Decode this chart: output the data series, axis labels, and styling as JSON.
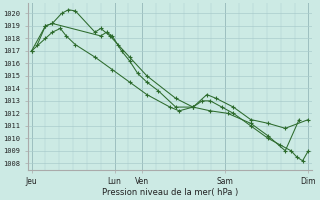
{
  "title": "Pression niveau de la mer( hPa )",
  "ylabel_values": [
    1008,
    1009,
    1010,
    1011,
    1012,
    1013,
    1014,
    1015,
    1016,
    1017,
    1018,
    1019,
    1020
  ],
  "ylim": [
    1007.5,
    1020.8
  ],
  "background_color": "#cceae4",
  "grid_color": "#aacccc",
  "line_color": "#2d6b2d",
  "xlim": [
    -0.3,
    24.3
  ],
  "xtick_positions": [
    0,
    7.2,
    9.6,
    16.8,
    24
  ],
  "xtick_labels": [
    "Jeu",
    "Lun",
    "Ven",
    "Sam",
    "Dim"
  ],
  "series1_x": [
    0,
    1.2,
    1.8,
    2.6,
    3.2,
    3.8,
    5.5,
    6.0,
    6.8,
    7.5,
    8.5,
    10.0,
    12.5,
    14.0,
    15.5,
    17.0,
    19.0,
    20.5,
    22.0,
    23.2
  ],
  "series1_y": [
    1017.0,
    1019.0,
    1019.2,
    1020.0,
    1020.3,
    1020.2,
    1018.5,
    1018.8,
    1018.2,
    1017.5,
    1016.5,
    1015.0,
    1013.2,
    1012.5,
    1012.2,
    1012.0,
    1011.2,
    1010.2,
    1009.0,
    1011.5
  ],
  "series2_x": [
    0.5,
    1.2,
    1.8,
    6.0,
    6.5,
    7.0,
    7.8,
    8.5,
    9.2,
    10.0,
    11.0,
    12.5,
    14.0,
    15.2,
    16.0,
    17.5,
    19.0,
    20.5,
    22.0,
    24.0
  ],
  "series2_y": [
    1017.5,
    1019.0,
    1019.2,
    1018.2,
    1018.5,
    1018.2,
    1017.0,
    1016.2,
    1015.2,
    1014.5,
    1013.8,
    1012.5,
    1012.5,
    1013.5,
    1013.2,
    1012.5,
    1011.5,
    1011.2,
    1010.8,
    1011.5
  ],
  "series3_x": [
    0,
    1.2,
    1.8,
    2.5,
    3.0,
    3.8,
    5.5,
    7.0,
    8.5,
    10.0,
    12.0,
    12.8,
    14.0,
    14.8,
    15.5,
    16.5,
    17.5,
    19.0,
    20.5,
    21.5,
    22.5,
    23.0,
    23.5,
    24.0
  ],
  "series3_y": [
    1017.0,
    1018.0,
    1018.5,
    1018.8,
    1018.2,
    1017.5,
    1016.5,
    1015.5,
    1014.5,
    1013.5,
    1012.5,
    1012.2,
    1012.5,
    1013.0,
    1013.0,
    1012.5,
    1012.0,
    1011.0,
    1010.0,
    1009.5,
    1009.0,
    1008.5,
    1008.2,
    1009.0
  ]
}
